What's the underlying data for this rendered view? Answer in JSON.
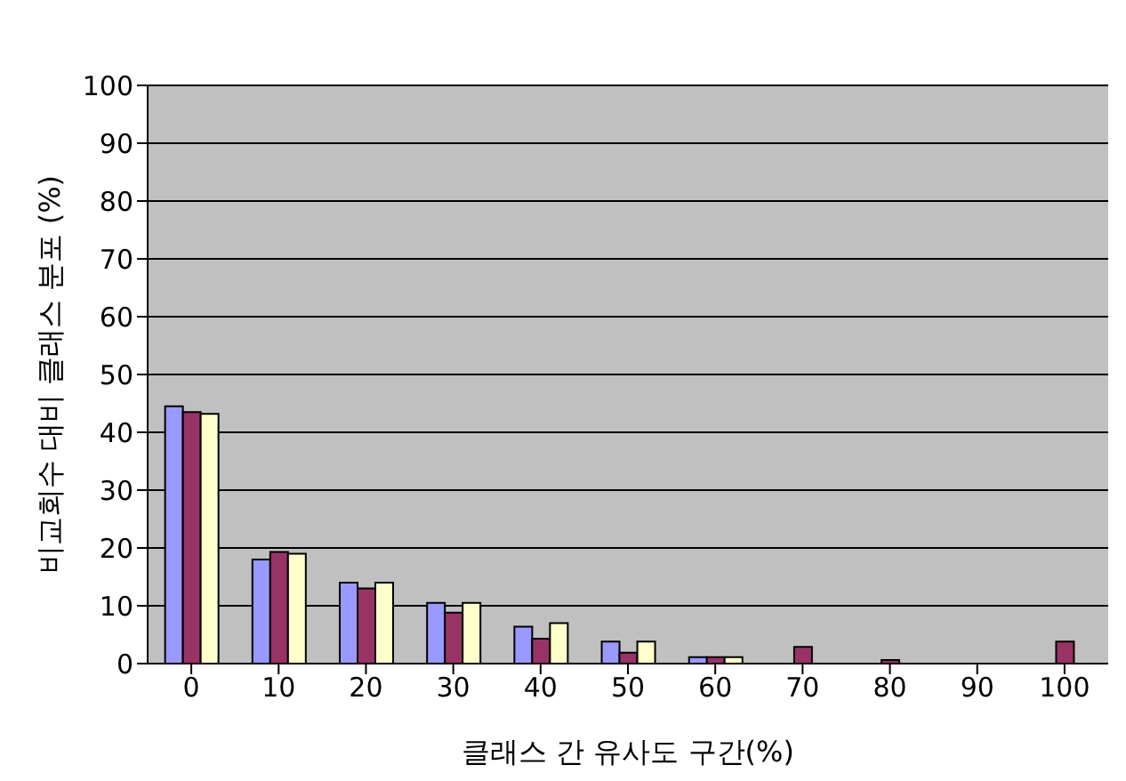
{
  "chart_data": {
    "type": "bar",
    "xlabel": "클래스 간 유사도 구간(%)",
    "ylabel": "비교회수 대비 클래스 분포 (%)",
    "categories": [
      "0",
      "10",
      "20",
      "30",
      "40",
      "50",
      "60",
      "70",
      "80",
      "90",
      "100"
    ],
    "series": [
      {
        "color": "#9999ff",
        "values": [
          44.5,
          18,
          14,
          10.5,
          6.4,
          3.8,
          1.1,
          null,
          0,
          0,
          null
        ]
      },
      {
        "color": "#993366",
        "values": [
          43.5,
          19.3,
          13,
          8.8,
          4.3,
          1.9,
          1.1,
          2.9,
          0.6,
          0,
          3.8
        ]
      },
      {
        "color": "#ffffcc",
        "values": [
          43.2,
          19,
          14,
          10.5,
          7,
          3.8,
          1.1,
          null,
          0,
          0,
          null
        ]
      }
    ],
    "ylim": [
      0,
      100
    ],
    "yticks": [
      0,
      10,
      20,
      30,
      40,
      50,
      60,
      70,
      80,
      90,
      100
    ],
    "grid": "y"
  }
}
